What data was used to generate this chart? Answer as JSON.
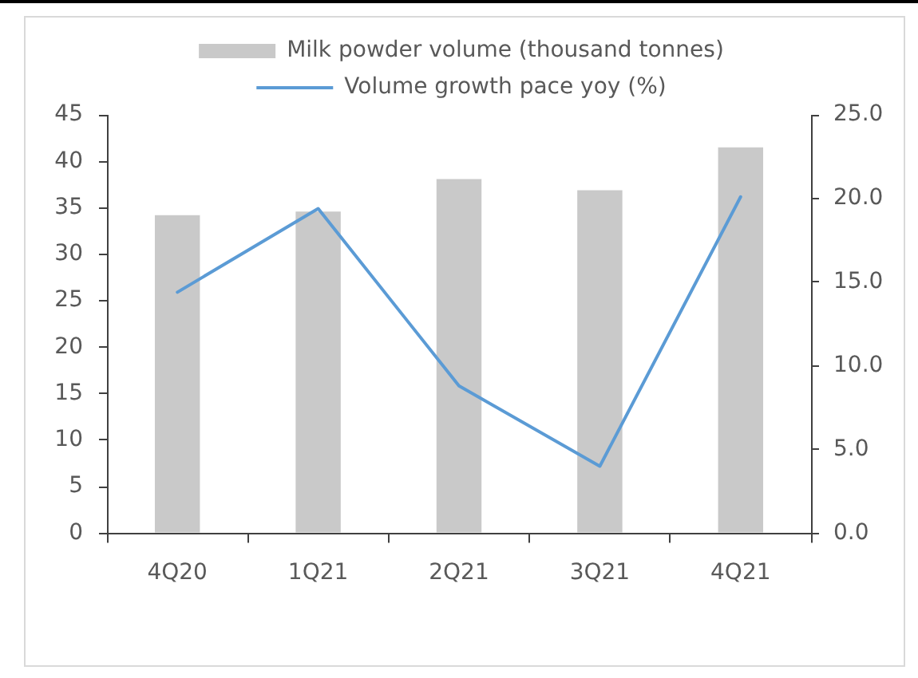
{
  "chart_data": {
    "type": "bar",
    "categories": [
      "4Q20",
      "1Q21",
      "2Q21",
      "3Q21",
      "4Q21"
    ],
    "series": [
      {
        "name": "Milk powder volume (thousand tonnes)",
        "color": "#c9c9c9",
        "values": [
          34.2,
          34.6,
          38.1,
          36.9,
          41.5
        ]
      },
      {
        "name": "Volume growth pace yoy (%)",
        "type": "line",
        "axis": "y2",
        "color": "#5b9bd5",
        "values": [
          14.4,
          19.4,
          8.8,
          4.0,
          20.1
        ]
      }
    ],
    "ylim": [
      0,
      45
    ],
    "yticks": [
      0,
      5,
      10,
      15,
      20,
      25,
      30,
      35,
      40,
      45
    ],
    "y2lim": [
      0,
      25
    ],
    "y2ticks": [
      {
        "value": 0,
        "label": "0.0"
      },
      {
        "value": 5,
        "label": "5.0"
      },
      {
        "value": 10,
        "label": "10.0"
      },
      {
        "value": 15,
        "label": "15.0"
      },
      {
        "value": 20,
        "label": "20.0"
      },
      {
        "value": 25,
        "label": "25.0"
      }
    ],
    "legend": "top"
  }
}
